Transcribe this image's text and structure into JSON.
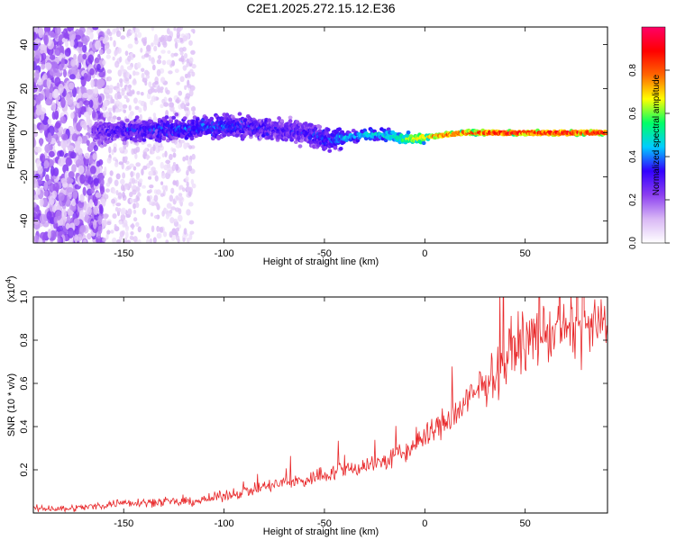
{
  "title": "C2E1.2025.272.15.12.E36",
  "chart_data": [
    {
      "type": "heatmap",
      "xlabel": "Height of straight line (km)",
      "ylabel": "Frequency (Hz)",
      "xlim": [
        -195,
        91
      ],
      "ylim": [
        -50,
        48
      ],
      "xticks": [
        "-150",
        "-100",
        "-50",
        "0",
        "50"
      ],
      "xtick_values": [
        -150,
        -100,
        -50,
        0,
        50
      ],
      "yticks": [
        "40",
        "20",
        "0",
        "-20",
        "-40"
      ],
      "ytick_values": [
        40,
        20,
        0,
        -20,
        -40
      ],
      "colorbar": {
        "label": "Normalized spectral amplitude",
        "range": [
          0,
          1
        ],
        "ticks": [
          "0.0",
          "0.2",
          "0.4",
          "0.6",
          "0.8"
        ],
        "tick_values": [
          0,
          0.2,
          0.4,
          0.6,
          0.8
        ],
        "stops": [
          "#ffffff",
          "#d9b8f5",
          "#8c3ff0",
          "#3300ff",
          "#00ccff",
          "#00ff66",
          "#ffff00",
          "#ff6600",
          "#ff0000",
          "#ff0066"
        ]
      },
      "ridge": {
        "x": [
          -165,
          -150,
          -120,
          -100,
          -80,
          -60,
          -50,
          -40,
          -30,
          -20,
          -10,
          0,
          10,
          20,
          40,
          60,
          80,
          91
        ],
        "freq": [
          0,
          1,
          2,
          3,
          2,
          0,
          -3,
          -2,
          -1,
          -1,
          -3,
          -2,
          -1,
          0,
          0,
          0,
          0,
          0
        ],
        "amplitude": [
          0.25,
          0.3,
          0.35,
          0.35,
          0.3,
          0.3,
          0.35,
          0.4,
          0.45,
          0.5,
          0.6,
          0.7,
          0.8,
          0.85,
          0.9,
          0.9,
          0.9,
          0.88
        ]
      }
    },
    {
      "type": "line",
      "xlabel": "Height of straight line (km)",
      "ylabel": "SNR (10 * v/v)",
      "yscale_label": "(x10",
      "yscale_exp": "4",
      "yscale_close": ")",
      "xlim": [
        -195,
        91
      ],
      "ylim": [
        0,
        1.0
      ],
      "xticks": [
        "-150",
        "-100",
        "-50",
        "0",
        "50"
      ],
      "xtick_values": [
        -150,
        -100,
        -50,
        0,
        50
      ],
      "yticks": [
        "1.0",
        "0.8",
        "0.6",
        "0.4",
        "0.2"
      ],
      "ytick_values": [
        1.0,
        0.8,
        0.6,
        0.4,
        0.2
      ],
      "series": [
        {
          "name": "SNR",
          "color": "#e8282a",
          "x": [
            -195,
            -180,
            -165,
            -150,
            -140,
            -130,
            -120,
            -110,
            -100,
            -90,
            -80,
            -70,
            -60,
            -50,
            -40,
            -30,
            -20,
            -10,
            0,
            10,
            20,
            30,
            40,
            45,
            50,
            60,
            70,
            80,
            91
          ],
          "y": [
            0.02,
            0.02,
            0.03,
            0.05,
            0.05,
            0.05,
            0.05,
            0.06,
            0.08,
            0.1,
            0.12,
            0.14,
            0.15,
            0.18,
            0.2,
            0.22,
            0.24,
            0.28,
            0.35,
            0.42,
            0.5,
            0.6,
            0.7,
            0.78,
            0.8,
            0.83,
            0.85,
            0.86,
            0.86
          ]
        }
      ]
    }
  ]
}
